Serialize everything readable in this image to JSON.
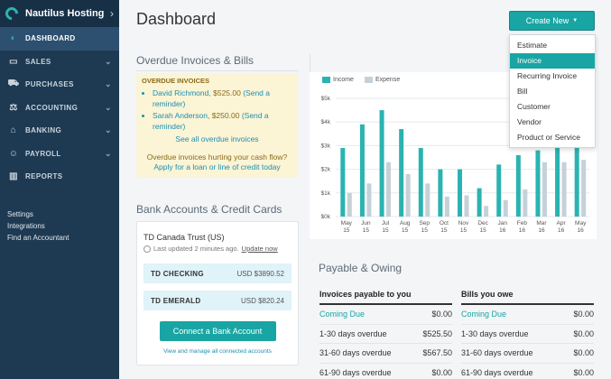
{
  "sidebar": {
    "brand": "Nautilus Hosting",
    "items": [
      {
        "label": "DASHBOARD",
        "icon": "dashboard-icon",
        "glyph": "◐",
        "active": true,
        "arrow": ""
      },
      {
        "label": "SALES",
        "icon": "sales-icon",
        "glyph": "▭",
        "arrow": "⌄"
      },
      {
        "label": "PURCHASES",
        "icon": "cart-icon",
        "glyph": "⛟",
        "arrow": "⌄"
      },
      {
        "label": "ACCOUNTING",
        "icon": "scale-icon",
        "glyph": "⚖",
        "arrow": "⌄"
      },
      {
        "label": "BANKING",
        "icon": "bank-icon",
        "glyph": "⌂",
        "arrow": "⌄"
      },
      {
        "label": "PAYROLL",
        "icon": "people-icon",
        "glyph": "☺",
        "arrow": "⌄"
      },
      {
        "label": "REPORTS",
        "icon": "reports-icon",
        "glyph": "▥",
        "arrow": ""
      }
    ],
    "links": [
      "Settings",
      "Integrations",
      "Find an Accountant"
    ]
  },
  "header": {
    "title": "Dashboard",
    "create_label": "Create New"
  },
  "create_menu": {
    "items": [
      "Estimate",
      "Invoice",
      "Recurring Invoice",
      "Bill",
      "Customer",
      "Vendor",
      "Product or Service"
    ],
    "active_index": 1
  },
  "overdue": {
    "title": "Overdue Invoices & Bills",
    "box_title": "OVERDUE INVOICES",
    "invoices": [
      {
        "name": "David Richmond",
        "amount": "$525.00",
        "action": "(Send a reminder)"
      },
      {
        "name": "Sarah Anderson",
        "amount": "$250.00",
        "action": "(Send a reminder)"
      }
    ],
    "see_all": "See all overdue invoices",
    "note": "Overdue invoices hurting your cash flow?",
    "loan_link": "Apply for a loan or line of credit today"
  },
  "bank": {
    "title": "Bank Accounts & Credit Cards",
    "bank_name": "TD Canada Trust (US)",
    "updated": "Last updated 2 minutes ago.",
    "update_now": "Update now",
    "accounts": [
      {
        "name": "TD CHECKING",
        "balance": "USD $3890.52"
      },
      {
        "name": "TD EMERALD",
        "balance": "USD $820.24"
      }
    ],
    "connect_label": "Connect a Bank Account",
    "manage_link": "View and manage all connected accounts"
  },
  "colors": {
    "income": "#2ab3b1",
    "expense": "#c5d1d8",
    "accent": "#19a5a3",
    "sidebar": "#1e3a52"
  },
  "chart_data": {
    "type": "bar",
    "categories": [
      "May 15",
      "Jun 15",
      "Jul 15",
      "Aug 15",
      "Sep 15",
      "Oct 15",
      "Nov 15",
      "Dec 15",
      "Jan 16",
      "Feb 16",
      "Mar 16",
      "Apr 16",
      "May 16"
    ],
    "series": [
      {
        "name": "Income",
        "values": [
          2900,
          3900,
          4500,
          3700,
          2900,
          2000,
          2000,
          1200,
          2200,
          2600,
          2800,
          2900,
          3300
        ]
      },
      {
        "name": "Expense",
        "values": [
          1000,
          1400,
          2300,
          1800,
          1400,
          850,
          900,
          450,
          700,
          1150,
          2300,
          2300,
          2400
        ]
      }
    ],
    "yticks": [
      "$0k",
      "$1k",
      "$2k",
      "$3k",
      "$4k",
      "$5k"
    ],
    "ylim": [
      0,
      5000
    ],
    "legend": "top-left",
    "grid": true
  },
  "payable": {
    "title": "Payable & Owing",
    "invoices": {
      "header": "Invoices payable to you",
      "rows": [
        {
          "label": "Coming Due",
          "value": "$0.00"
        },
        {
          "label": "1-30 days overdue",
          "value": "$525.50"
        },
        {
          "label": "31-60 days overdue",
          "value": "$567.50"
        },
        {
          "label": "61-90 days overdue",
          "value": "$0.00"
        }
      ]
    },
    "bills": {
      "header": "Bills you owe",
      "rows": [
        {
          "label": "Coming Due",
          "value": "$0.00"
        },
        {
          "label": "1-30 days overdue",
          "value": "$0.00"
        },
        {
          "label": "31-60 days overdue",
          "value": "$0.00"
        },
        {
          "label": "61-90 days overdue",
          "value": "$0.00"
        }
      ]
    }
  }
}
